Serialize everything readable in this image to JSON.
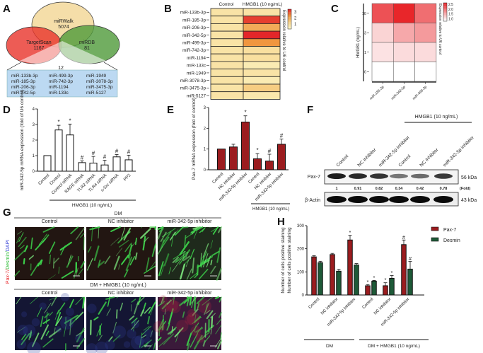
{
  "panel_labels": [
    "A",
    "B",
    "C",
    "D",
    "E",
    "F",
    "G",
    "H"
  ],
  "venn": {
    "sets": [
      {
        "name": "miRWalk",
        "count": "5074",
        "color": "#f4dca4"
      },
      {
        "name": "TargetScan",
        "count": "1167",
        "color": "#e8332a"
      },
      {
        "name": "miRDB",
        "count": "81",
        "color": "#4f9a3a"
      }
    ],
    "intersection_count": "12",
    "intersection_list": [
      "miR-133b-3p",
      "miR-185-3p",
      "miR-206-3p",
      "miR-342-5p",
      "miR-499-3p",
      "miR-742-3p",
      "miR-1194",
      "miR-133c",
      "miR-1949",
      "miR-3078-3p",
      "miR-3475-3p",
      "miR-5127"
    ],
    "box_color": "#bcd9f2"
  },
  "chart_data": [
    {
      "panel": "B",
      "type": "heatmap",
      "columns": [
        "Control",
        "HMGB1 (10 ng/mL)"
      ],
      "rows": [
        "miR-133b-3p",
        "miR-185-3p",
        "miR-206-3p",
        "miR-342-5p",
        "miR-499-3p",
        "miR-742-3p",
        "miR-1194",
        "miR-133c",
        "miR-1949",
        "miR-3078-3p",
        "miR-3475-3p",
        "miR-5127"
      ],
      "values": [
        [
          1,
          1
        ],
        [
          1,
          3.0
        ],
        [
          1,
          2.0
        ],
        [
          1,
          3.2
        ],
        [
          1,
          2.3
        ],
        [
          1,
          1.1
        ],
        [
          1,
          1.1
        ],
        [
          1,
          0.8
        ],
        [
          1,
          1.0
        ],
        [
          1,
          0.8
        ],
        [
          1,
          1.5
        ],
        [
          1,
          0.9
        ]
      ],
      "colorbar_label": "Expression relative to U6 control",
      "colorbar_ticks": [
        "3",
        "2",
        "1"
      ],
      "colorscale": [
        "#fcf6c8",
        "#f7d48a",
        "#f0963f",
        "#e3262a"
      ]
    },
    {
      "panel": "C",
      "type": "heatmap",
      "ylabel": "HMGB1 (ng/mL)",
      "rows": [
        "10",
        "3",
        "1",
        "0"
      ],
      "columns": [
        "miR-185-3p",
        "miR-342-5p",
        "miR-499-3p"
      ],
      "values": [
        [
          2.2,
          2.5,
          2.0
        ],
        [
          1.3,
          1.6,
          1.7
        ],
        [
          1.2,
          1.25,
          1.25
        ],
        [
          1.0,
          1.0,
          1.0
        ]
      ],
      "colorbar_label": "Expression relative to U6 control",
      "colorbar_ticks": [
        "2.5",
        "2.0",
        "1.5",
        "1.0"
      ],
      "colorscale": [
        "#ffffff",
        "#e8262a"
      ]
    },
    {
      "panel": "D",
      "type": "bar",
      "ylabel": "miR-342-5p mRNA expression (fold of U6 control)",
      "categories": [
        "Control",
        "Control",
        "Control siRNA",
        "RAGE siRNA",
        "TLR2 siRNA",
        "TLR4 siRNA",
        "c-Src siRNA",
        "PP2"
      ],
      "values": [
        1.0,
        2.65,
        2.33,
        0.55,
        0.52,
        0.4,
        0.92,
        0.73
      ],
      "errors": [
        0,
        0.3,
        0.7,
        0.12,
        0.43,
        0.3,
        0.15,
        0.3
      ],
      "markers": [
        "",
        "*",
        "*",
        "#",
        "#",
        "#",
        "#",
        "#"
      ],
      "ylim": [
        0,
        4
      ],
      "yticks": [
        "0",
        "1",
        "2",
        "3",
        "4"
      ],
      "group_label": "HMGB1 (10 ng/mL)",
      "bar_color": "#ffffff"
    },
    {
      "panel": "E",
      "type": "bar",
      "ylabel": "Pax-7 mRNA expression (fold of control)",
      "categories": [
        "Control",
        "NC inhibitor",
        "miR-342-5p inhibitor",
        "Control",
        "NC inhibitor",
        "miR-342-5p inhibitor"
      ],
      "values": [
        1.0,
        1.1,
        2.3,
        0.53,
        0.42,
        1.23
      ],
      "errors": [
        0,
        0.13,
        0.3,
        0.25,
        0.33,
        0.25
      ],
      "markers": [
        "",
        "",
        "*",
        "*",
        "#",
        "#"
      ],
      "ylim": [
        0,
        3
      ],
      "yticks": [
        "0",
        "1",
        "2",
        "3"
      ],
      "group_label": "HMGB1 (10 ng/mL)",
      "bar_color": "#9b1c1f"
    },
    {
      "panel": "H",
      "type": "bar",
      "ylabel": "Number of cells positive staining",
      "categories": [
        "Control",
        "NC inhibitor",
        "miR-342-5p inhibitor",
        "Control",
        "NC inhibitor",
        "miR-342-5p inhibitor"
      ],
      "series": [
        {
          "name": "Pax-7",
          "color": "#9b1c1f",
          "values": [
            165,
            175,
            238,
            40,
            40,
            218
          ],
          "errors": [
            5,
            5,
            20,
            5,
            13,
            20
          ],
          "markers": [
            "",
            "",
            "*",
            "*",
            "*",
            "#"
          ]
        },
        {
          "name": "Desmin",
          "color": "#1e5a38",
          "values": [
            140,
            103,
            130,
            60,
            72,
            112
          ],
          "errors": [
            6,
            8,
            6,
            3,
            12,
            33
          ],
          "markers": [
            "",
            "",
            "",
            "*",
            "*",
            "#"
          ]
        }
      ],
      "ylim": [
        0,
        300
      ],
      "yticks": [
        "0",
        "100",
        "200",
        "300"
      ],
      "groups": [
        "DM",
        "DM + HMGB1 (10 ng/mL)"
      ],
      "legend": "top-right"
    }
  ],
  "western_blot": {
    "group_label": "HMGB1 (10 ng/mL)",
    "lanes": [
      "Control",
      "NC inhibitor",
      "miR-342-5p inhibitor",
      "Control",
      "NC inhibitor",
      "miR-342-5p inhibitor"
    ],
    "rows": [
      {
        "name": "Pax-7",
        "size": "56 kDa"
      },
      {
        "name": "β-Actin",
        "size": "43 kDa"
      }
    ],
    "fold_values": [
      "1",
      "0.91",
      "0.82",
      "0.34",
      "0.42",
      "0.78"
    ],
    "fold_label": "(Fold)"
  },
  "microscopy": {
    "stain_label": [
      "Pax-7/",
      "Desmin/",
      "DAPI"
    ],
    "stain_colors": [
      "#e8262a",
      "#38c040",
      "#3a46d8"
    ],
    "conditions": [
      "DM",
      "DM + HMGB1 (10 ng/mL)"
    ],
    "columns": [
      "Control",
      "NC inhibitor",
      "miR-342-5p inhibitor"
    ]
  }
}
